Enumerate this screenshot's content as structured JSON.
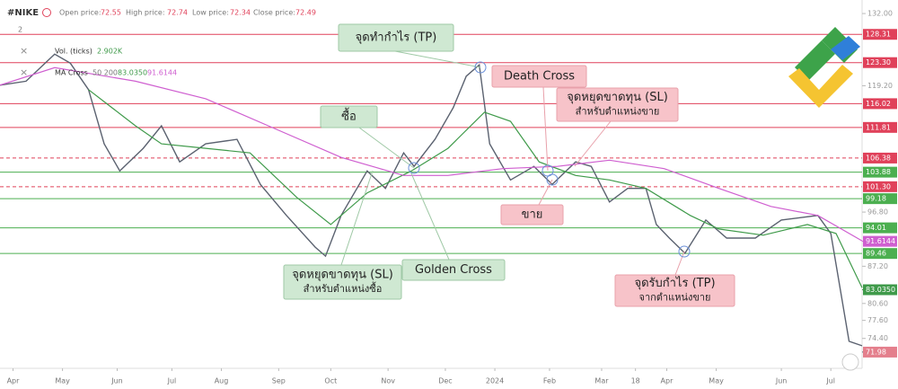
{
  "header": {
    "symbol": "#NIKE",
    "open_label": "Open price:",
    "open": 72.55,
    "high_label": "High price:",
    "high": 72.74,
    "low_label": "Low price:",
    "low": 72.34,
    "close_label": "Close price:",
    "close": 72.49,
    "interval": "2"
  },
  "legend": {
    "vol_name": "Vol. (ticks)",
    "vol_value": "2.902K",
    "ma_name": "MA Cross",
    "ma_params": "50 200",
    "ma50_value": "83.0350",
    "ma200_value": "91.6144"
  },
  "chart_data": {
    "type": "line",
    "xlim": [
      -5,
      326
    ],
    "ylim": [
      69.1,
      134.4
    ],
    "xticks": [
      {
        "value": 0,
        "label": "Apr"
      },
      {
        "value": 19,
        "label": "May"
      },
      {
        "value": 40,
        "label": "Jun"
      },
      {
        "value": 61,
        "label": "Jul"
      },
      {
        "value": 80,
        "label": "Aug"
      },
      {
        "value": 102,
        "label": "Sep"
      },
      {
        "value": 122,
        "label": "Oct"
      },
      {
        "value": 144,
        "label": "Nov"
      },
      {
        "value": 166,
        "label": "Dec"
      },
      {
        "value": 185,
        "label": "2024"
      },
      {
        "value": 206,
        "label": "Feb"
      },
      {
        "value": 226,
        "label": "Mar"
      },
      {
        "value": 239,
        "label": "18"
      },
      {
        "value": 251,
        "label": "Apr"
      },
      {
        "value": 270,
        "label": "May"
      },
      {
        "value": 295,
        "label": "Jun"
      },
      {
        "value": 314,
        "label": "Jul"
      }
    ],
    "yticks": [
      {
        "value": 132,
        "label": "132.00"
      },
      {
        "value": 119.2,
        "label": "119.20"
      },
      {
        "value": 96.8,
        "label": "96.80"
      },
      {
        "value": 87.2,
        "label": "87.20"
      },
      {
        "value": 80.6,
        "label": "80.60"
      },
      {
        "value": 77.6,
        "label": "77.60"
      },
      {
        "value": 74.4,
        "label": "74.40"
      }
    ],
    "levels": [
      {
        "value": 128.31,
        "label": "128.31",
        "color": "#e0415a",
        "dashed": false
      },
      {
        "value": 123.3,
        "label": "123.30",
        "color": "#e0415a",
        "dashed": false
      },
      {
        "value": 116.02,
        "label": "116.02",
        "color": "#e0415a",
        "dashed": false
      },
      {
        "value": 111.81,
        "label": "111.81",
        "color": "#e0415a",
        "dashed": false
      },
      {
        "value": 106.38,
        "label": "106.38",
        "color": "#e0415a",
        "dashed": true
      },
      {
        "value": 101.3,
        "label": "101.30",
        "color": "#e0415a",
        "dashed": true
      },
      {
        "value": 103.88,
        "label": "103.88",
        "color": "#4caf50",
        "dashed": false
      },
      {
        "value": 99.18,
        "label": "99.18",
        "color": "#4caf50",
        "dashed": false
      },
      {
        "value": 94.01,
        "label": "94.01",
        "color": "#4caf50",
        "dashed": false
      },
      {
        "value": 89.46,
        "label": "89.46",
        "color": "#4caf50",
        "dashed": false
      }
    ],
    "series": [
      {
        "color": "#5b6270",
        "x": [
          -5,
          5,
          16,
          22,
          29,
          35,
          41,
          50,
          57,
          64,
          74,
          86,
          95,
          105,
          116,
          120,
          126,
          136,
          143,
          150,
          154,
          162,
          169,
          174,
          179,
          183,
          191,
          200,
          207,
          216,
          222,
          229,
          236,
          243,
          247,
          252,
          258,
          266,
          274,
          285,
          295,
          309,
          314,
          321,
          326
        ],
        "values": [
          119.3,
          120,
          124.8,
          123.2,
          118.5,
          108.9,
          104.1,
          108.1,
          112.1,
          105.7,
          108.9,
          109.7,
          101.7,
          96.2,
          90.6,
          89,
          96.2,
          104.1,
          101,
          107.3,
          104.9,
          109.7,
          115.3,
          120.9,
          122.9,
          108.9,
          102.5,
          104.9,
          101.7,
          105.7,
          104.9,
          98.6,
          101,
          101,
          94.6,
          92.2,
          89.5,
          95.4,
          92.2,
          92.2,
          95.4,
          96.2,
          93,
          73.9,
          73.1
        ],
        "last": {
          "value": 71.98,
          "label": "71.98"
        }
      },
      {
        "color": "#3f9a4a",
        "x": [
          29,
          47,
          57,
          74,
          91,
          109,
          122,
          136,
          153,
          167,
          181,
          191,
          202,
          216,
          229,
          243,
          260,
          271,
          288,
          305,
          316,
          326
        ],
        "values": [
          118.5,
          112.1,
          108.9,
          108.1,
          107.3,
          99.4,
          94.6,
          100.2,
          104.1,
          108.1,
          114.5,
          112.9,
          105.7,
          103.3,
          102.5,
          101,
          96.2,
          93.8,
          92.7,
          94.6,
          93,
          83.4
        ],
        "last": {
          "value": 83.035,
          "label": "83.0350"
        }
      },
      {
        "color": "#cf5fd0",
        "x": [
          -5,
          16,
          47,
          74,
          98,
          126,
          150,
          167,
          188,
          209,
          229,
          250,
          271,
          291,
          309,
          326
        ],
        "values": [
          119.3,
          122.4,
          120,
          116.9,
          112.1,
          106.5,
          103.3,
          103.3,
          104.5,
          104.9,
          106,
          104.5,
          101,
          97.8,
          96.2,
          91.7
        ],
        "last": {
          "value": 91.6144,
          "label": "91.6144"
        }
      }
    ]
  },
  "annotations": [
    {
      "kind": "buy",
      "lines": [
        "จุดทำกำไร (TP)"
      ]
    },
    {
      "kind": "sell",
      "lines": [
        "Death Cross"
      ]
    },
    {
      "kind": "sell",
      "lines": [
        "จุดหยุดขาดทุน (SL)",
        "สำหรับตำแหน่งขาย"
      ]
    },
    {
      "kind": "buy",
      "lines": [
        "ซื้อ"
      ]
    },
    {
      "kind": "sell",
      "lines": [
        "ขาย"
      ]
    },
    {
      "kind": "buy",
      "lines": [
        "จุดหยุดขาดทุน (SL)",
        "สำหรับตำแหน่งซื้อ"
      ]
    },
    {
      "kind": "buy",
      "lines": [
        "Golden Cross"
      ]
    },
    {
      "kind": "sell",
      "lines": [
        "จุดรับกำไร (TP)",
        "จากตำแหน่งขาย"
      ]
    }
  ]
}
